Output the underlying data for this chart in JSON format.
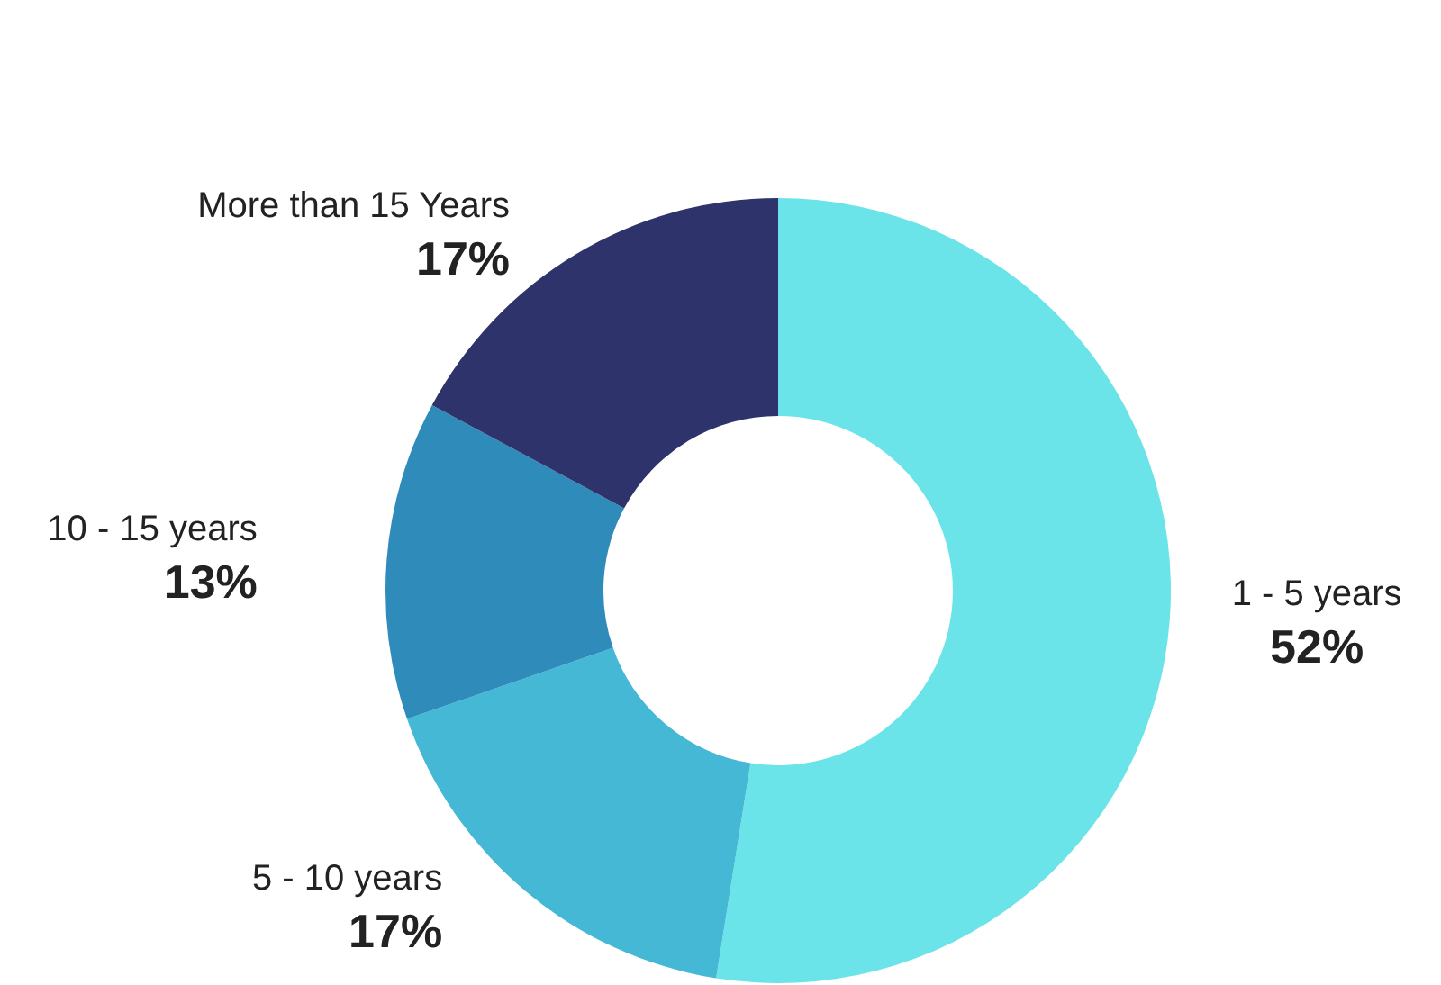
{
  "chart_data": {
    "type": "donut",
    "categories": [
      "1 - 5 years",
      "5 - 10 years",
      "10 - 15 years",
      "More than 15 Years"
    ],
    "values": [
      52,
      17,
      13,
      17
    ],
    "value_labels": [
      "52%",
      "17%",
      "13%",
      "17%"
    ],
    "colors": [
      "#6ae4e8",
      "#44b8d4",
      "#2e8bba",
      "#2f336b"
    ]
  }
}
